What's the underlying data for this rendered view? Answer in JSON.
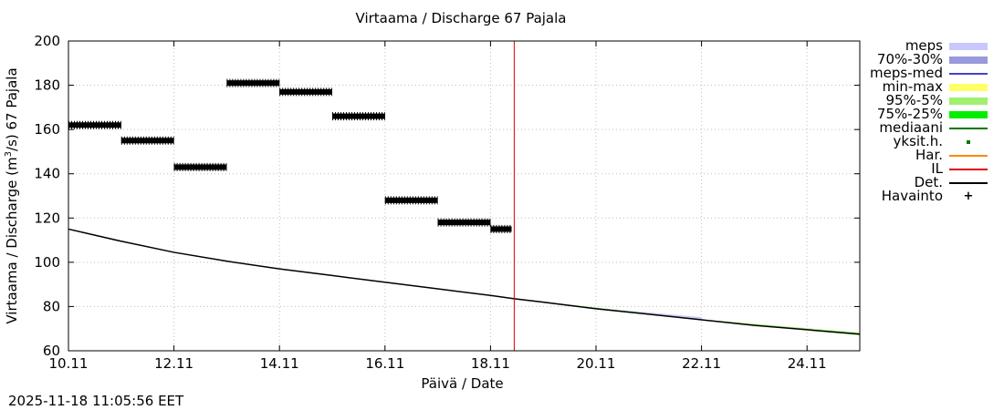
{
  "title": "Virtaama / Discharge  67 Pajala",
  "ylabel": "Virtaama / Discharge (m³/s)  67 Pajala",
  "xlabel": "Päivä / Date",
  "timestamp": "2025-11-18 11:05:56 EET",
  "chart_data": {
    "type": "line",
    "title": "Virtaama / Discharge  67 Pajala",
    "xlabel": "Päivä / Date",
    "ylabel": "Virtaama / Discharge (m³/s)  67 Pajala",
    "x_unit": "days since 10.11 00:00",
    "xlim": [
      0,
      15
    ],
    "ylim": [
      60,
      200
    ],
    "x_ticks": [
      {
        "value": 0,
        "label": "10.11"
      },
      {
        "value": 2,
        "label": "12.11"
      },
      {
        "value": 4,
        "label": "14.11"
      },
      {
        "value": 6,
        "label": "16.11"
      },
      {
        "value": 8,
        "label": "18.11"
      },
      {
        "value": 10,
        "label": "20.11"
      },
      {
        "value": 12,
        "label": "22.11"
      },
      {
        "value": 14,
        "label": "24.11"
      }
    ],
    "y_ticks": [
      60,
      80,
      100,
      120,
      140,
      160,
      180,
      200
    ],
    "grid": true,
    "forecast_start": 8.45,
    "series": [
      {
        "name": "Havainto",
        "kind": "observation",
        "color": "#000000",
        "points": [
          {
            "x0": 0.0,
            "x1": 1.0,
            "y": 162
          },
          {
            "x0": 1.0,
            "x1": 2.0,
            "y": 155
          },
          {
            "x0": 2.0,
            "x1": 3.0,
            "y": 143
          },
          {
            "x0": 3.0,
            "x1": 4.0,
            "y": 181
          },
          {
            "x0": 4.0,
            "x1": 5.0,
            "y": 177
          },
          {
            "x0": 5.0,
            "x1": 6.0,
            "y": 166
          },
          {
            "x0": 6.0,
            "x1": 7.0,
            "y": 128
          },
          {
            "x0": 7.0,
            "x1": 8.0,
            "y": 118
          },
          {
            "x0": 8.0,
            "x1": 8.4,
            "y": 115
          }
        ]
      },
      {
        "name": "Det.",
        "kind": "line",
        "color": "#000000",
        "x": [
          0,
          1,
          2,
          3,
          4,
          5,
          6,
          7,
          8,
          8.45,
          9,
          10,
          11,
          12,
          13,
          14,
          15
        ],
        "y": [
          115,
          109.5,
          104.5,
          100.5,
          97,
          94,
          91,
          88,
          85,
          83.5,
          82,
          79,
          76.5,
          74,
          71.5,
          69.5,
          67.5
        ]
      },
      {
        "name": "meps",
        "kind": "band",
        "color": "#c8c8ff",
        "x": [
          8.45,
          10,
          12
        ],
        "lower": [
          83.2,
          78.7,
          74.0
        ],
        "upper": [
          83.8,
          79.4,
          75.2
        ]
      },
      {
        "name": "95%-5%",
        "kind": "band",
        "color": "#a0f070",
        "x": [
          8.45,
          12,
          15
        ],
        "lower": [
          83.3,
          73.7,
          67.0
        ],
        "upper": [
          83.7,
          74.2,
          68.2
        ]
      },
      {
        "name": "IL",
        "kind": "vline",
        "color": "#dd0000",
        "x": 8.45
      }
    ]
  },
  "legend": [
    {
      "label": "meps",
      "kind": "band",
      "color": "#c8c8ff"
    },
    {
      "label": "70%-30%",
      "kind": "band",
      "color": "#9999dd"
    },
    {
      "label": "meps-med",
      "kind": "line",
      "color": "#4444cc"
    },
    {
      "label": "min-max",
      "kind": "band",
      "color": "#ffff66"
    },
    {
      "label": "95%-5%",
      "kind": "band",
      "color": "#a0f070"
    },
    {
      "label": "75%-25%",
      "kind": "band",
      "color": "#00ee00"
    },
    {
      "label": "mediaani",
      "kind": "line",
      "color": "#007700"
    },
    {
      "label": "yksit.h.",
      "kind": "dot",
      "color": "#007700"
    },
    {
      "label": "Har.",
      "kind": "line",
      "color": "#ff8800"
    },
    {
      "label": "IL",
      "kind": "line",
      "color": "#dd0000"
    },
    {
      "label": "Det.",
      "kind": "line",
      "color": "#000000"
    },
    {
      "label": "Havainto",
      "kind": "plus",
      "color": "#000000"
    }
  ]
}
